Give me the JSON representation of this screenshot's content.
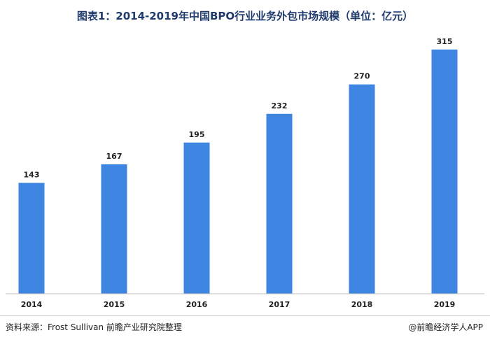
{
  "chart_data": {
    "type": "bar",
    "title": "图表1：2014-2019年中国BPO行业业务外包市场规模（单位：亿元）",
    "categories": [
      "2014",
      "2015",
      "2016",
      "2017",
      "2018",
      "2019"
    ],
    "values": [
      143,
      167,
      195,
      232,
      270,
      315
    ],
    "ylim": [
      0,
      350
    ],
    "grid": false,
    "legend": "none",
    "bar_color": "#3d85e0",
    "xlabel": "",
    "ylabel": ""
  },
  "footer": {
    "source": "资料来源：Frost Sullivan  前瞻产业研究院整理",
    "credit": "@前瞻经济学人APP"
  }
}
